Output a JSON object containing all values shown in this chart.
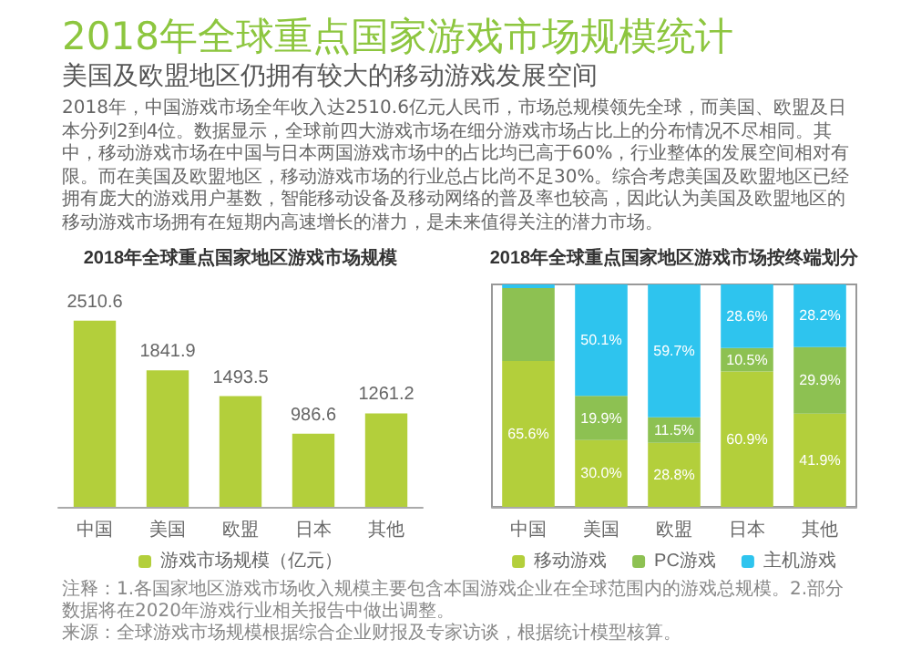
{
  "chart_data": [
    {
      "type": "other",
      "title": "2018年全球重点国家游戏市场规模统计",
      "subtitle": "美国及欧盟地区仍拥有较大的移动游戏发展空间",
      "annotations": [
        "2018年，中国游戏市场全年收入达2510.6亿元人民币，市场总规模领先全球，而美国、欧盟及日本分列2到4位。数据显示，全球前四大游戏市场在细分游戏市场占比上的分布情况不尽相同。其中，移动游戏市场在中国与日本两国游戏市场中的占比均已高于60%，行业整体的发展空间相对有限。而在美国及欧盟地区，移动游戏市场的行业总占比尚不足30%。综合考虑美国及欧盟地区已经拥有庞大的游戏用户基数，智能移动设备及移动网络的普及率也较高，因此认为美国及欧盟地区的移动游戏市场拥有在短期内高速增长的潜力，是未来值得关注的潜力市场。",
        "注释：1.各国家地区游戏市场收入规模主要包含本国游戏企业在全球范围内的游戏总规模。2.部分数据将在2020年游戏行业相关报告中做出调整。",
        "来源：全球游戏市场规模根据综合企业财报及专家访谈，根据统计模型核算。"
      ]
    },
    {
      "type": "bar",
      "title": "2018年全球重点国家地区游戏市场规模",
      "categories": [
        "中国",
        "美国",
        "欧盟",
        "日本",
        "其他"
      ],
      "series": [
        {
          "name": "游戏市场规模（亿元）",
          "color": "#b3cf3b",
          "values": [
            2510.6,
            1841.9,
            1493.5,
            986.6,
            1261.2
          ]
        }
      ],
      "data_labels": true,
      "legend": "bottom"
    },
    {
      "type": "bar",
      "title": "2018年全球重点国家地区游戏市场按终端划分",
      "categories": [
        "中国",
        "美国",
        "欧盟",
        "日本",
        "其他"
      ],
      "stacked": true,
      "series": [
        {
          "name": "移动游戏",
          "color": "#b3cf3b",
          "values": [
            65.6,
            30.0,
            28.8,
            60.9,
            41.9
          ],
          "value_labels": [
            "65.6%",
            "30.0%",
            "28.8%",
            "60.9%",
            "41.9%"
          ]
        },
        {
          "name": "PC游戏",
          "color": "#8dc152",
          "values": [
            32.8,
            19.9,
            11.5,
            10.5,
            29.9
          ],
          "value_labels": [
            null,
            "19.9%",
            "11.5%",
            "10.5%",
            "29.9%"
          ]
        },
        {
          "name": "主机游戏",
          "color": "#2ec4ee",
          "values": [
            1.6,
            50.1,
            59.7,
            28.6,
            28.2
          ],
          "value_labels": [
            null,
            "50.1%",
            "59.7%",
            "28.6%",
            "28.2%"
          ]
        }
      ],
      "legend": "bottom"
    }
  ]
}
